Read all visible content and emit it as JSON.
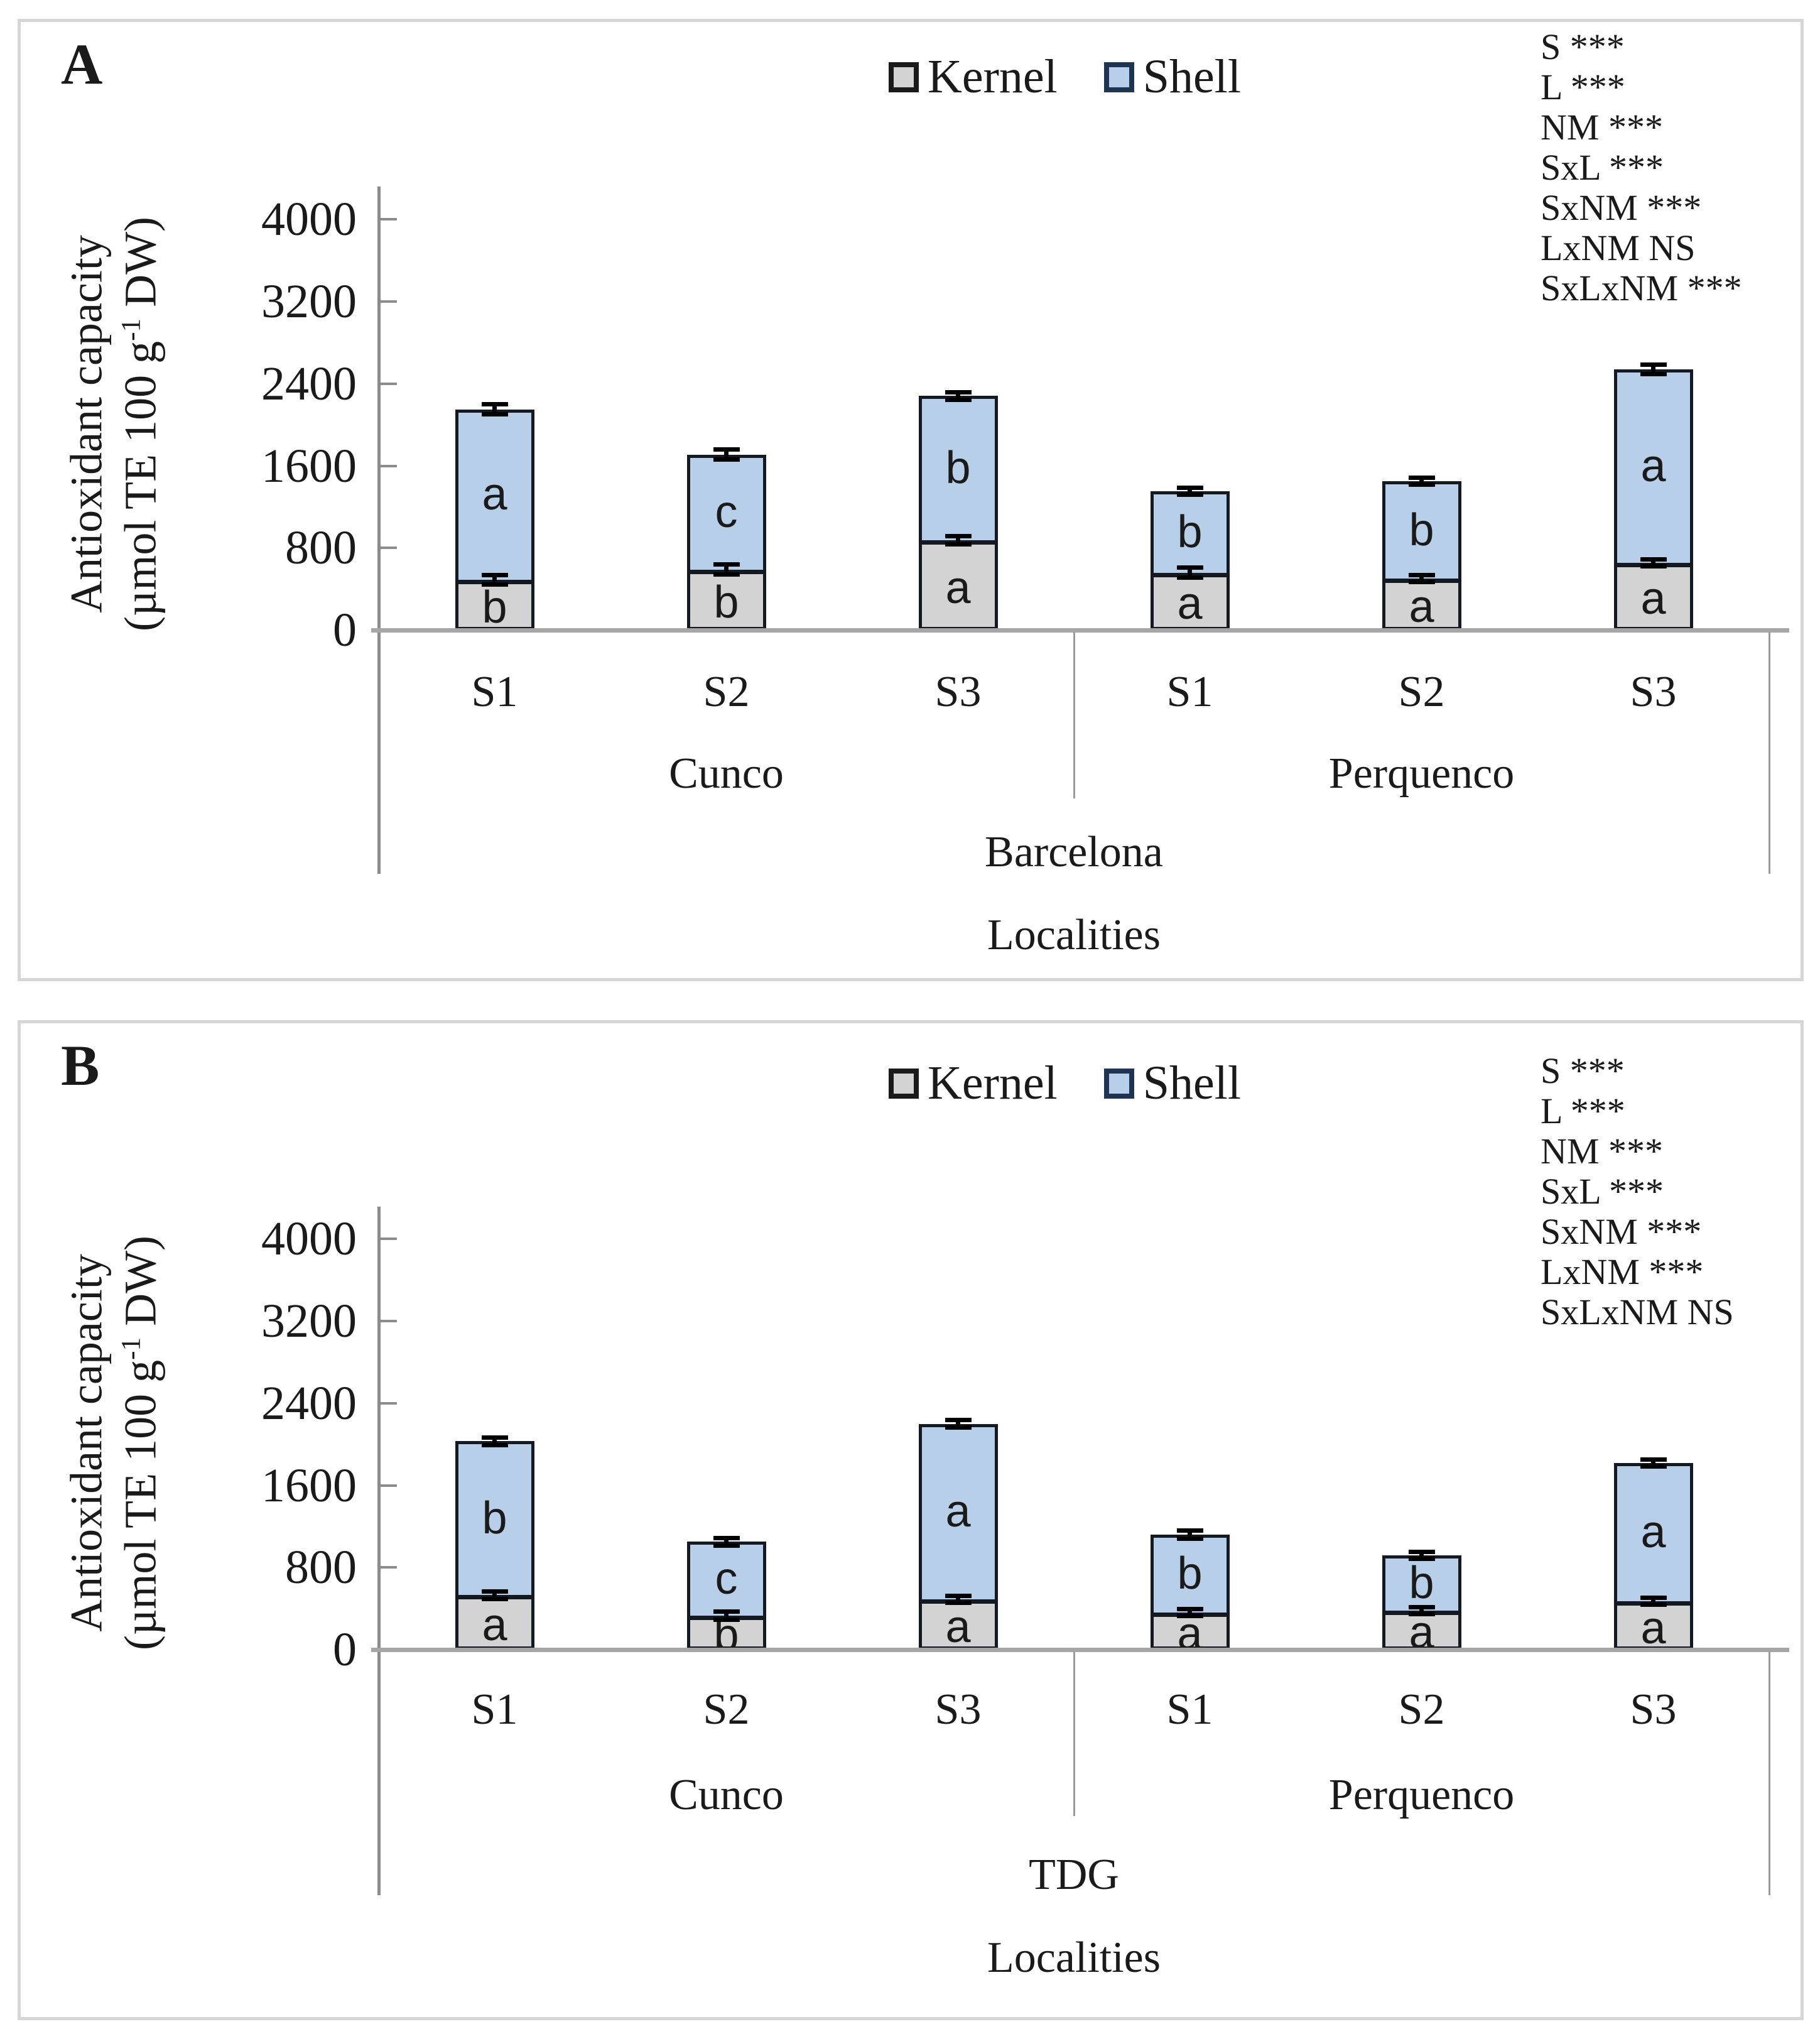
{
  "page": {
    "background": "#ffffff"
  },
  "colors": {
    "kernel": "#D3D3D3",
    "shell": "#B7CFE9",
    "bar_border": "#151922",
    "axis_line": "#8C8C8C",
    "baseline": "#A6A6A6",
    "separator": "#9A9A9A",
    "error_bar": "#000000",
    "panel_border": "#D6D6D6",
    "text": "#1A1A1A"
  },
  "legend": {
    "items": [
      {
        "label": "Kernel",
        "color": "#D3D3D3",
        "border": "#1A1A1A"
      },
      {
        "label": "Shell",
        "color": "#B7CFE9",
        "border": "#1F3352"
      }
    ]
  },
  "axis": {
    "ylabel_line1": "Antioxidant capacity",
    "ylabel_unit_pre": "(µmol TE 100 g",
    "ylabel_unit_sup": "-1",
    "ylabel_unit_post": " DW)",
    "xlabel": "Localities",
    "yticks": [
      0,
      800,
      1600,
      2400,
      3200,
      4000
    ],
    "ylim": [
      0,
      4400
    ],
    "grid": false
  },
  "chart_data": [
    {
      "type": "bar",
      "stacked": true,
      "panel_label": "A",
      "group_label": "Barcelona",
      "localities": [
        "Cunco",
        "Perquenco"
      ],
      "seasons": [
        "S1",
        "S2",
        "S3",
        "S1",
        "S2",
        "S3"
      ],
      "ylabel": "Antioxidant capacity (µmol TE 100 g-1 DW)",
      "xlabel": "Localities",
      "ylim": [
        0,
        4400
      ],
      "series": [
        {
          "name": "Kernel",
          "values": [
            490,
            590,
            875,
            560,
            500,
            655
          ],
          "letters": [
            "b",
            "b",
            "a",
            "a",
            "a",
            "a"
          ]
        },
        {
          "name": "Shell",
          "values": [
            1660,
            1120,
            1405,
            790,
            950,
            1885
          ],
          "letters": [
            "a",
            "c",
            "b",
            "b",
            "b",
            "a"
          ]
        }
      ],
      "totals": [
        2150,
        1710,
        2280,
        1350,
        1450,
        2540
      ],
      "errors_kernel": [
        70,
        70,
        60,
        70,
        40,
        40
      ],
      "errors_total": [
        70,
        70,
        60,
        55,
        55,
        65
      ],
      "stats": [
        "S ***",
        "L ***",
        "NM ***",
        "SxL ***",
        "SxNM ***",
        "LxNM NS",
        "SxLxNM ***"
      ]
    },
    {
      "type": "bar",
      "stacked": true,
      "panel_label": "B",
      "group_label": "TDG",
      "localities": [
        "Cunco",
        "Perquenco"
      ],
      "seasons": [
        "S1",
        "S2",
        "S3",
        "S1",
        "S2",
        "S3"
      ],
      "ylabel": "Antioxidant capacity (µmol TE 100 g-1 DW)",
      "xlabel": "Localities",
      "ylim": [
        0,
        4400
      ],
      "series": [
        {
          "name": "Kernel",
          "values": [
            530,
            330,
            490,
            360,
            380,
            470
          ],
          "letters": [
            "a",
            "b",
            "a",
            "a",
            "a",
            "a"
          ]
        },
        {
          "name": "Shell",
          "values": [
            1500,
            720,
            1710,
            760,
            540,
            1350
          ],
          "letters": [
            "b",
            "c",
            "a",
            "b",
            "b",
            "a"
          ]
        }
      ],
      "totals": [
        2030,
        1050,
        2200,
        1120,
        920,
        1820
      ],
      "errors_kernel": [
        60,
        60,
        55,
        45,
        50,
        45
      ],
      "errors_total": [
        60,
        60,
        60,
        60,
        55,
        55
      ],
      "stats": [
        "S ***",
        "L ***",
        "NM ***",
        "SxL ***",
        "SxNM ***",
        "LxNM ***",
        "SxLxNM NS"
      ]
    }
  ]
}
